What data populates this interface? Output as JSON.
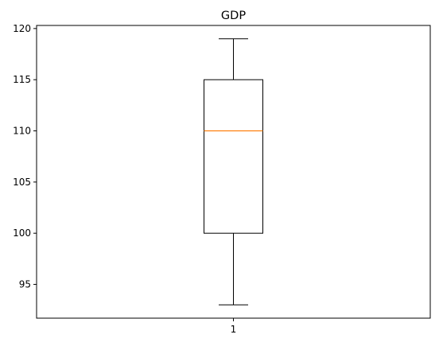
{
  "chart_data": {
    "type": "box",
    "title": "GDP",
    "xlabel": "",
    "ylabel": "",
    "categories": [
      "1"
    ],
    "boxes": [
      {
        "category": "1",
        "whisker_low": 93,
        "q1": 100,
        "median": 110,
        "q3": 115,
        "whisker_high": 119
      }
    ],
    "ylim": [
      91.7,
      120.3
    ],
    "yticks": [
      95,
      100,
      105,
      110,
      115,
      120
    ],
    "ytick_labels": [
      "95",
      "100",
      "105",
      "110",
      "115",
      "120"
    ],
    "grid": false,
    "legend": "none",
    "colors": {
      "box": "#000000",
      "median": "#ff7f0e",
      "axes": "#000000",
      "background": "#ffffff"
    }
  }
}
